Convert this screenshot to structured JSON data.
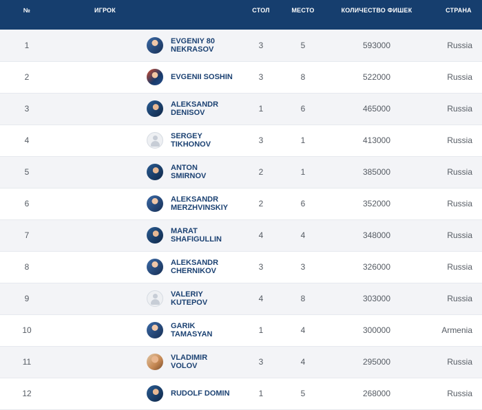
{
  "table": {
    "headers": {
      "num": "№",
      "player": "ИГРОК",
      "table": "СТОЛ",
      "seat": "МЕСТО",
      "chips": "КОЛИЧЕСТВО ФИШЕК",
      "country": "СТРАНА"
    },
    "rows": [
      {
        "num": "1",
        "name": "EVGENIY 80 NEKRASOV",
        "avatar": "player-photo-icon",
        "table": "3",
        "seat": "5",
        "chips": "593000",
        "country": "Russia"
      },
      {
        "num": "2",
        "name": "EVGENII SOSHIN",
        "avatar": "player-photo-icon",
        "table": "3",
        "seat": "8",
        "chips": "522000",
        "country": "Russia"
      },
      {
        "num": "3",
        "name": "ALEKSANDR DENISOV",
        "avatar": "player-photo-icon",
        "table": "1",
        "seat": "6",
        "chips": "465000",
        "country": "Russia"
      },
      {
        "num": "4",
        "name": "SERGEY TIKHONOV",
        "avatar": "default-avatar-icon",
        "table": "3",
        "seat": "1",
        "chips": "413000",
        "country": "Russia"
      },
      {
        "num": "5",
        "name": "ANTON SMIRNOV",
        "avatar": "player-photo-icon",
        "table": "2",
        "seat": "1",
        "chips": "385000",
        "country": "Russia"
      },
      {
        "num": "6",
        "name": "ALEKSANDR MERZHVINSKIY",
        "avatar": "player-photo-icon",
        "table": "2",
        "seat": "6",
        "chips": "352000",
        "country": "Russia"
      },
      {
        "num": "7",
        "name": "MARAT SHAFIGULLIN",
        "avatar": "player-photo-icon",
        "table": "4",
        "seat": "4",
        "chips": "348000",
        "country": "Russia"
      },
      {
        "num": "8",
        "name": "ALEKSANDR CHERNIKOV",
        "avatar": "player-photo-icon",
        "table": "3",
        "seat": "3",
        "chips": "326000",
        "country": "Russia"
      },
      {
        "num": "9",
        "name": "VALERIY KUTEPOV",
        "avatar": "default-avatar-icon",
        "table": "4",
        "seat": "8",
        "chips": "303000",
        "country": "Russia"
      },
      {
        "num": "10",
        "name": "GARIK TAMASYAN",
        "avatar": "player-photo-icon",
        "table": "1",
        "seat": "4",
        "chips": "300000",
        "country": "Armenia"
      },
      {
        "num": "11",
        "name": "VLADIMIR VOLOV",
        "avatar": "player-photo-icon",
        "table": "3",
        "seat": "4",
        "chips": "295000",
        "country": "Russia"
      },
      {
        "num": "12",
        "name": "RUDOLF DOMIN",
        "avatar": "player-photo-icon",
        "table": "1",
        "seat": "5",
        "chips": "268000",
        "country": "Russia"
      }
    ]
  },
  "colors": {
    "header_bg": "#163e6e",
    "name_text": "#1b4172",
    "row_stripe": "#f3f4f7"
  }
}
